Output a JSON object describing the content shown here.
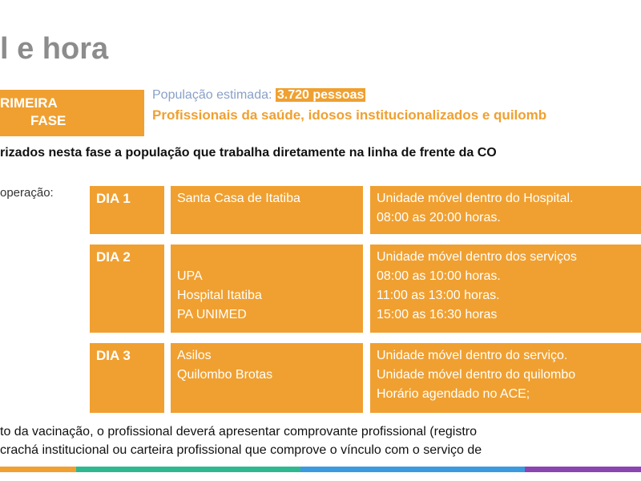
{
  "title": "l e hora",
  "phase": {
    "line1": "RIMEIRA",
    "line2": "FASE"
  },
  "population": {
    "label": "População estimada:",
    "value": "3.720 pessoas"
  },
  "groups": "Profissionais da saúde, idosos institucionalizados e quilomb",
  "note": "rizados nesta fase a população que trabalha diretamente na linha de frente da CO",
  "operation_label": "operação:",
  "rows": [
    {
      "day": "DIA 1",
      "places": [
        "Santa Casa de Itatiba"
      ],
      "details": [
        "Unidade móvel dentro do Hospital.",
        "08:00 as 20:00 horas."
      ]
    },
    {
      "day": "DIA 2",
      "places": [
        "",
        "UPA",
        "Hospital Itatiba",
        "PA UNIMED"
      ],
      "details": [
        "Unidade móvel dentro dos serviços",
        "08:00 as 10:00 horas.",
        "11:00 as 13:00 horas.",
        "15:00 as 16:30 horas"
      ]
    },
    {
      "day": "DIA 3",
      "places": [
        "Asilos",
        "Quilombo Brotas"
      ],
      "details": [
        "Unidade móvel dentro do serviço.",
        "Unidade móvel dentro do quilombo",
        "Horário agendado no ACE;"
      ]
    }
  ],
  "footer": [
    "to da vacinação, o profissional deverá apresentar comprovante profissional (registro",
    "crachá institucional ou carteira profissional que comprove o vínculo com o serviço de"
  ],
  "colors": {
    "accent": "#f0a030",
    "bar": [
      "#f0a030",
      "#2fb88f",
      "#3a9ae0",
      "#8a45b0"
    ]
  }
}
